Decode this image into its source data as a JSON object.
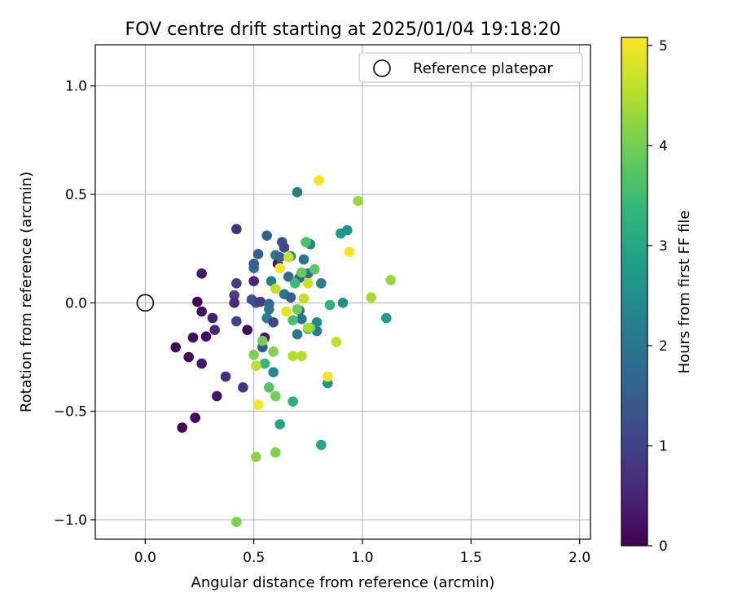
{
  "chart_data": {
    "type": "scatter",
    "title": "FOV centre drift starting at 2025/01/04 19:18:20",
    "xlabel": "Angular distance from reference (arcmin)",
    "ylabel": "Rotation from reference (arcmin)",
    "xlim": [
      -0.23,
      2.05
    ],
    "ylim": [
      -1.09,
      1.19
    ],
    "xticks": [
      0.0,
      0.5,
      1.0,
      1.5,
      2.0
    ],
    "xtick_labels": [
      "0.0",
      "0.5",
      "1.0",
      "1.5",
      "2.0"
    ],
    "yticks": [
      -1.0,
      -0.5,
      0.0,
      0.5,
      1.0
    ],
    "ytick_labels": [
      "−1.0",
      "−0.5",
      "0.0",
      "0.5",
      "1.0"
    ],
    "grid": true,
    "legend": {
      "placement": "top-right",
      "entries": [
        "Reference platepar"
      ]
    },
    "reference_point": {
      "name": "Reference platepar",
      "x": 0.0,
      "y": 0.0
    },
    "colorbar": {
      "label": "Hours from first FF file",
      "min": 0,
      "max": 5.08,
      "ticks": [
        0,
        1,
        2,
        3,
        4,
        5
      ],
      "tick_labels": [
        "0",
        "1",
        "2",
        "3",
        "4",
        "5"
      ],
      "colormap": "viridis"
    },
    "points": [
      {
        "x": 0.14,
        "y": -0.205,
        "c": 0.05
      },
      {
        "x": 0.17,
        "y": -0.575,
        "c": 0.05
      },
      {
        "x": 0.2,
        "y": -0.25,
        "c": 0.1
      },
      {
        "x": 0.22,
        "y": -0.16,
        "c": 0.2
      },
      {
        "x": 0.23,
        "y": -0.53,
        "c": 0.1
      },
      {
        "x": 0.24,
        "y": 0.005,
        "c": 0.1
      },
      {
        "x": 0.26,
        "y": -0.04,
        "c": 0.2
      },
      {
        "x": 0.26,
        "y": -0.28,
        "c": 0.3
      },
      {
        "x": 0.26,
        "y": 0.135,
        "c": 0.3
      },
      {
        "x": 0.28,
        "y": -0.155,
        "c": 0.2
      },
      {
        "x": 0.31,
        "y": -0.07,
        "c": 0.4
      },
      {
        "x": 0.32,
        "y": -0.125,
        "c": 0.6
      },
      {
        "x": 0.33,
        "y": -0.43,
        "c": 0.3
      },
      {
        "x": 0.37,
        "y": -0.34,
        "c": 0.7
      },
      {
        "x": 0.41,
        "y": 0.035,
        "c": 1.0
      },
      {
        "x": 0.41,
        "y": 0.0,
        "c": 0.6
      },
      {
        "x": 0.42,
        "y": -0.085,
        "c": 1.0
      },
      {
        "x": 0.42,
        "y": 0.09,
        "c": 0.9
      },
      {
        "x": 0.42,
        "y": 0.34,
        "c": 0.7
      },
      {
        "x": 0.45,
        "y": -0.39,
        "c": 0.8
      },
      {
        "x": 0.47,
        "y": -0.125,
        "c": 0.1
      },
      {
        "x": 0.49,
        "y": 0.015,
        "c": 1.3
      },
      {
        "x": 0.5,
        "y": 0.1,
        "c": 0.5
      },
      {
        "x": 0.5,
        "y": 0.16,
        "c": 1.8
      },
      {
        "x": 0.5,
        "y": 0.18,
        "c": 1.5
      },
      {
        "x": 0.51,
        "y": 0.0,
        "c": 1.2
      },
      {
        "x": 0.52,
        "y": 0.225,
        "c": 1.5
      },
      {
        "x": 0.53,
        "y": 0.005,
        "c": 0.9
      },
      {
        "x": 0.54,
        "y": -0.205,
        "c": 1.4
      },
      {
        "x": 0.55,
        "y": -0.16,
        "c": 0.3
      },
      {
        "x": 0.56,
        "y": 0.31,
        "c": 1.6
      },
      {
        "x": 0.56,
        "y": -0.07,
        "c": 2.2
      },
      {
        "x": 0.57,
        "y": -0.005,
        "c": 1.7
      },
      {
        "x": 0.57,
        "y": -0.03,
        "c": 2.0
      },
      {
        "x": 0.58,
        "y": 0.1,
        "c": 2.2
      },
      {
        "x": 0.59,
        "y": -0.09,
        "c": 1.1
      },
      {
        "x": 0.6,
        "y": 0.22,
        "c": 2.0
      },
      {
        "x": 0.61,
        "y": 0.18,
        "c": 0.3
      },
      {
        "x": 0.62,
        "y": 0.21,
        "c": 1.6
      },
      {
        "x": 0.63,
        "y": 0.28,
        "c": 1.2
      },
      {
        "x": 0.64,
        "y": 0.04,
        "c": 2.0
      },
      {
        "x": 0.64,
        "y": 0.255,
        "c": 1.1
      },
      {
        "x": 0.66,
        "y": 0.12,
        "c": 1.8
      },
      {
        "x": 0.67,
        "y": 0.215,
        "c": 2.4
      },
      {
        "x": 0.67,
        "y": 0.025,
        "c": 1.5
      },
      {
        "x": 0.7,
        "y": 0.51,
        "c": 2.1
      },
      {
        "x": 0.7,
        "y": -0.145,
        "c": 2.0
      },
      {
        "x": 0.71,
        "y": 0.115,
        "c": 1.6
      },
      {
        "x": 0.71,
        "y": -0.035,
        "c": 1.7
      },
      {
        "x": 0.72,
        "y": -0.075,
        "c": 1.9
      },
      {
        "x": 0.73,
        "y": 0.2,
        "c": 2.0
      },
      {
        "x": 0.75,
        "y": -0.12,
        "c": 2.2
      },
      {
        "x": 0.75,
        "y": 0.135,
        "c": 2.0
      },
      {
        "x": 0.76,
        "y": 0.27,
        "c": 2.3
      },
      {
        "x": 0.79,
        "y": -0.09,
        "c": 2.3
      },
      {
        "x": 0.79,
        "y": -0.13,
        "c": 2.1
      },
      {
        "x": 0.81,
        "y": 0.09,
        "c": 2.1
      },
      {
        "x": 0.84,
        "y": -0.37,
        "c": 2.6
      },
      {
        "x": 0.9,
        "y": 0.32,
        "c": 2.8
      },
      {
        "x": 0.91,
        "y": 0.0,
        "c": 2.5
      },
      {
        "x": 0.93,
        "y": 0.335,
        "c": 2.6
      },
      {
        "x": 1.11,
        "y": -0.07,
        "c": 2.8
      },
      {
        "x": 0.55,
        "y": -0.28,
        "c": 3.4
      },
      {
        "x": 0.59,
        "y": -0.32,
        "c": 2.4
      },
      {
        "x": 0.62,
        "y": -0.56,
        "c": 3.0
      },
      {
        "x": 0.68,
        "y": -0.455,
        "c": 3.2
      },
      {
        "x": 0.74,
        "y": 0.28,
        "c": 3.6
      },
      {
        "x": 0.81,
        "y": -0.655,
        "c": 3.0
      },
      {
        "x": 0.85,
        "y": -0.01,
        "c": 3.3
      },
      {
        "x": 0.68,
        "y": -0.08,
        "c": 3.6
      },
      {
        "x": 0.69,
        "y": 0.09,
        "c": 3.5
      },
      {
        "x": 0.57,
        "y": -0.39,
        "c": 3.7
      },
      {
        "x": 0.78,
        "y": 0.155,
        "c": 3.8
      },
      {
        "x": 0.7,
        "y": -0.03,
        "c": 3.9
      },
      {
        "x": 0.72,
        "y": 0.14,
        "c": 3.9
      },
      {
        "x": 0.76,
        "y": -0.115,
        "c": 3.9
      },
      {
        "x": 0.5,
        "y": -0.24,
        "c": 4.1
      },
      {
        "x": 0.54,
        "y": -0.175,
        "c": 4.0
      },
      {
        "x": 0.59,
        "y": -0.225,
        "c": 4.1
      },
      {
        "x": 0.6,
        "y": -0.43,
        "c": 4.0
      },
      {
        "x": 0.6,
        "y": -0.69,
        "c": 4.1
      },
      {
        "x": 0.51,
        "y": -0.71,
        "c": 4.2
      },
      {
        "x": 0.42,
        "y": -1.01,
        "c": 4.1
      },
      {
        "x": 0.98,
        "y": 0.47,
        "c": 4.3
      },
      {
        "x": 1.04,
        "y": 0.025,
        "c": 4.4
      },
      {
        "x": 1.13,
        "y": 0.105,
        "c": 4.3
      },
      {
        "x": 0.51,
        "y": -0.29,
        "c": 4.6
      },
      {
        "x": 0.6,
        "y": 0.065,
        "c": 4.6
      },
      {
        "x": 0.66,
        "y": 0.21,
        "c": 4.7
      },
      {
        "x": 0.68,
        "y": -0.245,
        "c": 4.5
      },
      {
        "x": 0.72,
        "y": -0.245,
        "c": 4.5
      },
      {
        "x": 0.75,
        "y": 0.09,
        "c": 4.7
      },
      {
        "x": 0.73,
        "y": 0.02,
        "c": 4.6
      },
      {
        "x": 0.75,
        "y": -0.115,
        "c": 4.4
      },
      {
        "x": 0.88,
        "y": -0.18,
        "c": 4.6
      },
      {
        "x": 0.52,
        "y": -0.47,
        "c": 5.0
      },
      {
        "x": 0.62,
        "y": 0.16,
        "c": 5.0
      },
      {
        "x": 0.65,
        "y": -0.04,
        "c": 4.9
      },
      {
        "x": 0.8,
        "y": 0.565,
        "c": 5.0
      },
      {
        "x": 0.84,
        "y": -0.34,
        "c": 5.0
      },
      {
        "x": 0.94,
        "y": 0.235,
        "c": 5.0
      }
    ]
  }
}
